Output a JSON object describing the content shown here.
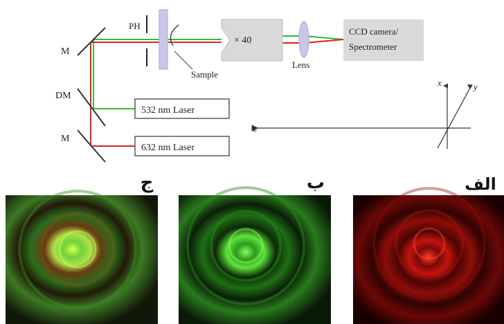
{
  "setup": {
    "mirror_top_label": "M",
    "dichroic_mirror_label": "DM",
    "mirror_bottom_label": "M",
    "pinhole_label": "PH",
    "sample_label": "Sample",
    "objective_label": "× 40",
    "lens_label": "Lens",
    "detector_label_line1": "CCD camera/",
    "detector_label_line2": "Spectrometer",
    "laser_green_label": "532 nm Laser",
    "laser_red_label": "632 nm Laser",
    "beam_colors": {
      "green": "#33bb33",
      "red": "#dd2222"
    }
  },
  "axes": {
    "x_label": "x",
    "y_label": "y",
    "z_label": "z"
  },
  "panels": [
    {
      "label": "ج",
      "content": "combined red + green ring pattern"
    },
    {
      "label": "ب",
      "content": "green ring pattern"
    },
    {
      "label": "الف",
      "content": "red ring pattern"
    }
  ]
}
